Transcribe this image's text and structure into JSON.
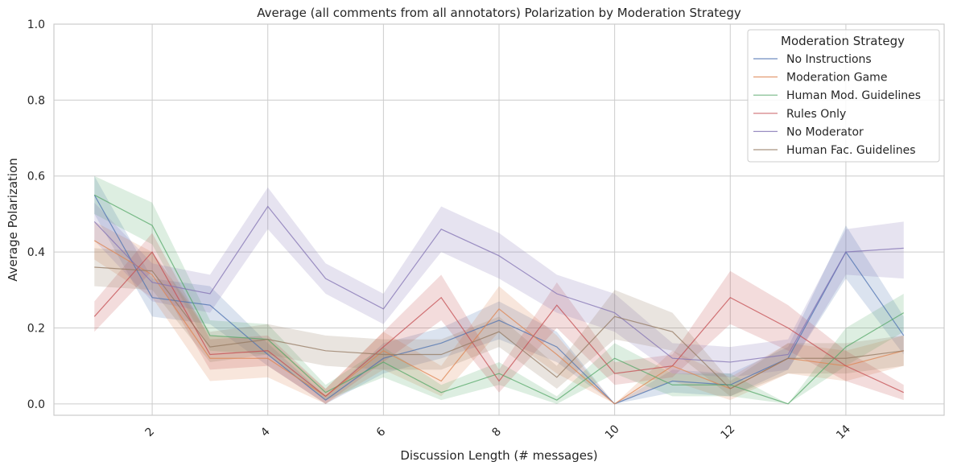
{
  "chart_data": {
    "type": "line",
    "title": "Average (all comments from all annotators) Polarization by Moderation Strategy",
    "xlabel": "Discussion Length (# messages)",
    "ylabel": "Average Polarization",
    "xlim": [
      0.3,
      15.7
    ],
    "ylim": [
      -0.03,
      1.0
    ],
    "xticks": [
      2,
      4,
      6,
      8,
      10,
      12,
      14
    ],
    "xtick_labels": [
      "2",
      "4",
      "6",
      "8",
      "10",
      "12",
      "14"
    ],
    "xtick_rotation": -45,
    "yticks": [
      0.0,
      0.2,
      0.4,
      0.6,
      0.8,
      1.0
    ],
    "ytick_labels": [
      "0.0",
      "0.2",
      "0.4",
      "0.6",
      "0.8",
      "1.0"
    ],
    "grid": true,
    "legend": {
      "title": "Moderation Strategy",
      "placement": "top-right"
    },
    "x": [
      1,
      2,
      3,
      4,
      5,
      6,
      7,
      8,
      9,
      10,
      11,
      12,
      13,
      14,
      15
    ],
    "series": [
      {
        "name": "No Instructions",
        "color": "#4c72b0",
        "values": [
          0.55,
          0.28,
          0.26,
          0.13,
          0.01,
          0.12,
          0.16,
          0.22,
          0.15,
          0.0,
          0.06,
          0.05,
          0.12,
          0.4,
          0.18
        ],
        "lower": [
          0.5,
          0.23,
          0.21,
          0.1,
          0.0,
          0.08,
          0.12,
          0.17,
          0.11,
          0.0,
          0.03,
          0.02,
          0.09,
          0.33,
          0.13
        ],
        "upper": [
          0.6,
          0.33,
          0.31,
          0.16,
          0.02,
          0.16,
          0.2,
          0.27,
          0.19,
          0.0,
          0.09,
          0.08,
          0.15,
          0.47,
          0.23
        ]
      },
      {
        "name": "Moderation Game",
        "color": "#dd8452",
        "values": [
          0.43,
          0.34,
          0.12,
          0.12,
          0.02,
          0.14,
          0.06,
          0.25,
          0.13,
          0.0,
          0.1,
          0.04,
          0.12,
          0.1,
          0.14
        ],
        "lower": [
          0.38,
          0.28,
          0.06,
          0.07,
          0.0,
          0.09,
          0.02,
          0.19,
          0.08,
          0.0,
          0.06,
          0.01,
          0.08,
          0.06,
          0.1
        ],
        "upper": [
          0.48,
          0.4,
          0.18,
          0.17,
          0.04,
          0.19,
          0.1,
          0.31,
          0.18,
          0.0,
          0.14,
          0.07,
          0.16,
          0.14,
          0.18
        ]
      },
      {
        "name": "Human Mod. Guidelines",
        "color": "#55a868",
        "values": [
          0.55,
          0.47,
          0.18,
          0.17,
          0.03,
          0.11,
          0.03,
          0.08,
          0.01,
          0.12,
          0.05,
          0.05,
          0.0,
          0.15,
          0.24
        ],
        "lower": [
          0.5,
          0.42,
          0.14,
          0.13,
          0.01,
          0.07,
          0.01,
          0.05,
          0.0,
          0.08,
          0.02,
          0.02,
          0.0,
          0.1,
          0.19
        ],
        "upper": [
          0.6,
          0.53,
          0.22,
          0.21,
          0.05,
          0.15,
          0.05,
          0.11,
          0.02,
          0.16,
          0.08,
          0.08,
          0.0,
          0.2,
          0.29
        ]
      },
      {
        "name": "Rules Only",
        "color": "#c44e52",
        "values": [
          0.23,
          0.4,
          0.13,
          0.14,
          0.02,
          0.15,
          0.28,
          0.06,
          0.26,
          0.08,
          0.1,
          0.28,
          0.2,
          0.1,
          0.03
        ],
        "lower": [
          0.19,
          0.35,
          0.09,
          0.1,
          0.0,
          0.11,
          0.22,
          0.03,
          0.2,
          0.05,
          0.07,
          0.21,
          0.14,
          0.06,
          0.01
        ],
        "upper": [
          0.27,
          0.45,
          0.17,
          0.18,
          0.04,
          0.19,
          0.34,
          0.09,
          0.32,
          0.11,
          0.13,
          0.35,
          0.26,
          0.14,
          0.05
        ]
      },
      {
        "name": "No Moderator",
        "color": "#8172b3",
        "values": [
          0.48,
          0.32,
          0.29,
          0.52,
          0.33,
          0.25,
          0.46,
          0.39,
          0.29,
          0.24,
          0.12,
          0.11,
          0.13,
          0.4,
          0.41
        ],
        "lower": [
          0.43,
          0.27,
          0.24,
          0.46,
          0.29,
          0.21,
          0.4,
          0.33,
          0.24,
          0.19,
          0.08,
          0.07,
          0.09,
          0.34,
          0.33
        ],
        "upper": [
          0.53,
          0.37,
          0.34,
          0.57,
          0.37,
          0.29,
          0.52,
          0.45,
          0.34,
          0.29,
          0.16,
          0.15,
          0.17,
          0.46,
          0.48
        ]
      },
      {
        "name": "Human Fac. Guidelines",
        "color": "#937860",
        "values": [
          0.36,
          0.35,
          0.15,
          0.17,
          0.14,
          0.13,
          0.13,
          0.19,
          0.07,
          0.23,
          0.19,
          0.04,
          0.12,
          0.12,
          0.14
        ],
        "lower": [
          0.31,
          0.3,
          0.11,
          0.13,
          0.1,
          0.09,
          0.09,
          0.15,
          0.04,
          0.17,
          0.14,
          0.02,
          0.08,
          0.08,
          0.1
        ],
        "upper": [
          0.41,
          0.4,
          0.19,
          0.21,
          0.18,
          0.17,
          0.17,
          0.23,
          0.1,
          0.3,
          0.24,
          0.06,
          0.16,
          0.16,
          0.18
        ]
      }
    ]
  }
}
